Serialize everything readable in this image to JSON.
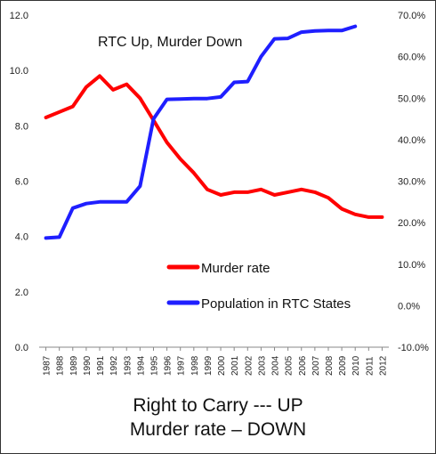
{
  "chart_data": {
    "type": "line",
    "annotation": "RTC Up, Murder Down",
    "x": [
      "1987",
      "1988",
      "1989",
      "1990",
      "1991",
      "1992",
      "1993",
      "1994",
      "1995",
      "1996",
      "1997",
      "1998",
      "1999",
      "2000",
      "2001",
      "2002",
      "2003",
      "2004",
      "2005",
      "2006",
      "2007",
      "2008",
      "2009",
      "2010",
      "2011",
      "2012"
    ],
    "series": [
      {
        "name": "Murder rate",
        "axis": "left",
        "color": "#ff0000",
        "values": [
          8.3,
          8.5,
          8.7,
          9.4,
          9.8,
          9.3,
          9.5,
          9.0,
          8.2,
          7.4,
          6.8,
          6.3,
          5.7,
          5.5,
          5.6,
          5.6,
          5.7,
          5.5,
          5.6,
          5.7,
          5.6,
          5.4,
          5.0,
          4.8,
          4.7,
          4.7
        ]
      },
      {
        "name": "Population in RTC States",
        "axis": "right",
        "color": "#1f1fff",
        "values": [
          16.3,
          16.5,
          23.5,
          24.6,
          25.0,
          25.0,
          25.0,
          28.8,
          45.0,
          49.7,
          49.8,
          49.9,
          49.9,
          50.3,
          53.8,
          54.0,
          60.0,
          64.3,
          64.4,
          65.9,
          66.2,
          66.3,
          66.3,
          67.3,
          null,
          null
        ]
      }
    ],
    "y_left": {
      "min": 0,
      "max": 12,
      "ticks": [
        "0.0",
        "2.0",
        "4.0",
        "6.0",
        "8.0",
        "10.0",
        "12.0"
      ]
    },
    "y_right": {
      "min": -10,
      "max": 70,
      "ticks": [
        "-10.0%",
        "0.0%",
        "10.0%",
        "20.0%",
        "30.0%",
        "40.0%",
        "50.0%",
        "60.0%",
        "70.0%"
      ]
    },
    "grid": false,
    "legend_position": "center-right"
  },
  "caption": {
    "line1": "Right to Carry --- UP",
    "line2": "Murder rate – DOWN"
  }
}
